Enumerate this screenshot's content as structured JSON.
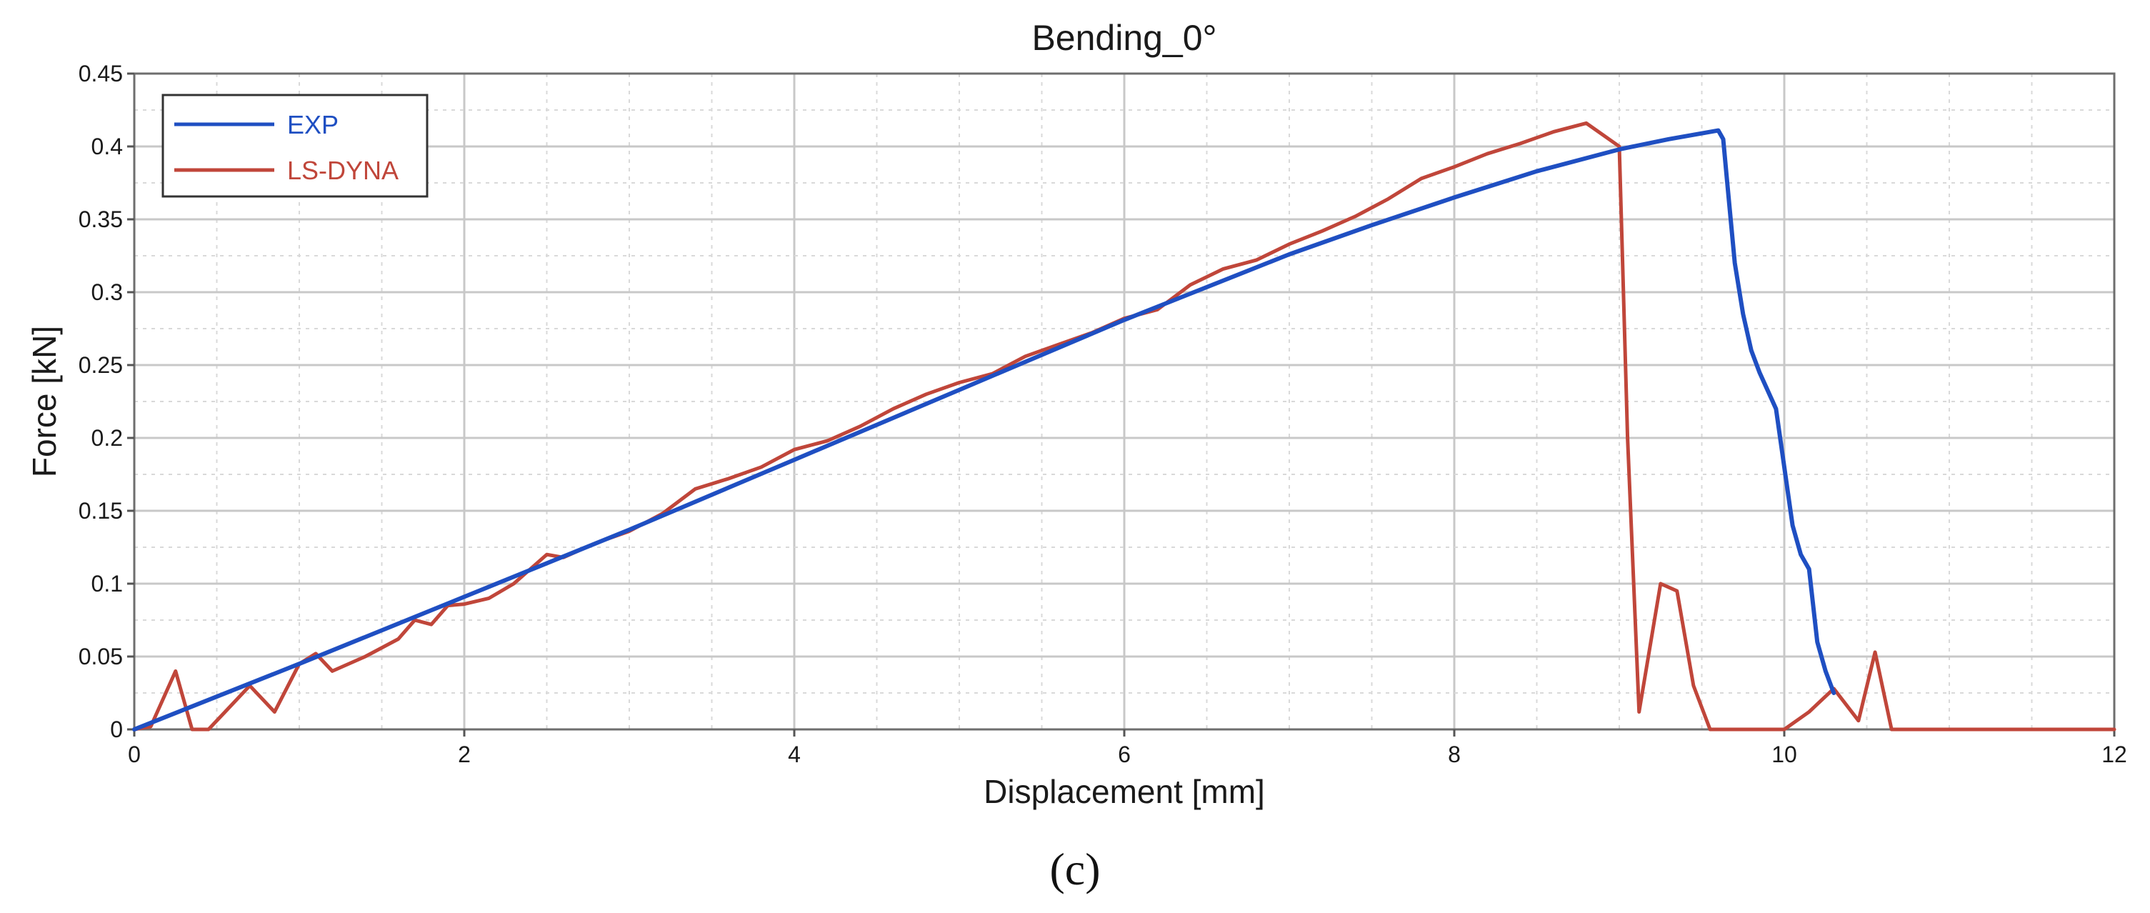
{
  "chart_data": {
    "type": "line",
    "title": "Bending_0°",
    "xlabel": "Displacement [mm]",
    "ylabel": "Force [kN]",
    "xlim": [
      0,
      12
    ],
    "ylim": [
      0,
      0.45
    ],
    "xticks": [
      "0",
      "2",
      "4",
      "6",
      "8",
      "10",
      "12"
    ],
    "yticks": [
      "0",
      "0.05",
      "0.1",
      "0.15",
      "0.2",
      "0.25",
      "0.3",
      "0.35",
      "0.4",
      "0.45"
    ],
    "grid": true,
    "legend_position": "top-left",
    "series": [
      {
        "name": "EXP",
        "color": "#1f4fc2",
        "x": [
          0,
          1,
          2,
          3,
          4,
          5,
          6,
          7,
          7.5,
          8,
          8.5,
          9,
          9.3,
          9.6,
          9.63,
          9.65,
          9.7,
          9.75,
          9.8,
          9.85,
          9.95,
          10.0,
          10.05,
          10.1,
          10.15,
          10.2,
          10.25,
          10.3
        ],
        "y": [
          0,
          0.045,
          0.091,
          0.137,
          0.185,
          0.233,
          0.281,
          0.326,
          0.346,
          0.365,
          0.383,
          0.398,
          0.405,
          0.411,
          0.405,
          0.38,
          0.32,
          0.285,
          0.26,
          0.245,
          0.22,
          0.18,
          0.14,
          0.12,
          0.11,
          0.06,
          0.04,
          0.025
        ]
      },
      {
        "name": "LS-DYNA",
        "color": "#c0463a",
        "x": [
          0,
          0.1,
          0.25,
          0.35,
          0.45,
          0.55,
          0.7,
          0.85,
          1.0,
          1.1,
          1.2,
          1.4,
          1.6,
          1.7,
          1.8,
          1.9,
          2.0,
          2.15,
          2.3,
          2.5,
          2.6,
          2.8,
          3.0,
          3.2,
          3.4,
          3.6,
          3.8,
          4.0,
          4.2,
          4.4,
          4.6,
          4.8,
          5.0,
          5.2,
          5.4,
          5.6,
          5.8,
          6.0,
          6.2,
          6.4,
          6.6,
          6.8,
          7.0,
          7.2,
          7.4,
          7.6,
          7.8,
          8.0,
          8.2,
          8.4,
          8.6,
          8.8,
          8.9,
          9.0,
          9.05,
          9.12,
          9.25,
          9.35,
          9.45,
          9.55,
          9.7,
          10.0,
          10.15,
          10.3,
          10.45,
          10.55,
          10.65,
          12.0
        ],
        "y": [
          0,
          0.002,
          0.04,
          0.0,
          0.0,
          0.012,
          0.03,
          0.012,
          0.045,
          0.052,
          0.04,
          0.05,
          0.062,
          0.075,
          0.072,
          0.085,
          0.086,
          0.09,
          0.1,
          0.12,
          0.118,
          0.128,
          0.136,
          0.148,
          0.165,
          0.172,
          0.18,
          0.192,
          0.198,
          0.208,
          0.22,
          0.23,
          0.238,
          0.244,
          0.256,
          0.264,
          0.272,
          0.282,
          0.288,
          0.305,
          0.316,
          0.322,
          0.333,
          0.342,
          0.352,
          0.364,
          0.378,
          0.386,
          0.395,
          0.402,
          0.41,
          0.416,
          0.408,
          0.4,
          0.2,
          0.012,
          0.1,
          0.095,
          0.03,
          0.0,
          0.0,
          0.0,
          0.012,
          0.028,
          0.006,
          0.053,
          0.0,
          0.0
        ]
      }
    ]
  },
  "caption": "(c)"
}
